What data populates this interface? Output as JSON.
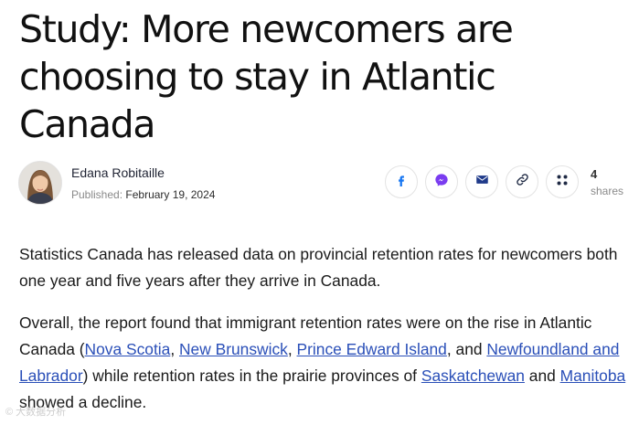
{
  "article": {
    "headline": "Study: More newcomers are choosing to stay in Atlantic Canada",
    "author": "Edana Robitaille",
    "published_label": "Published:",
    "published_date": "February 19, 2024"
  },
  "share": {
    "count": "4",
    "label": "shares",
    "buttons": [
      "facebook-icon",
      "messenger-icon",
      "email-icon",
      "link-icon",
      "more-icon"
    ],
    "colors": {
      "facebook": "#1877f2",
      "messenger": "#7a3cf0",
      "email": "#1f3a8a",
      "link": "#1f2a44"
    }
  },
  "body": {
    "p1": "Statistics Canada has released data on provincial retention rates for newcomers both one year and five years after they arrive in Canada.",
    "p2": {
      "t1": "Overall, the report found that immigrant retention rates were on the rise in Atlantic Canada (",
      "link_ns": "Nova Scotia",
      "sep1": ", ",
      "link_nb": "New Brunswick",
      "sep2": ", ",
      "link_pei": "Prince Edward Island",
      "sep3": ", and ",
      "link_nl": "Newfoundland and Labrador",
      "t2": ") while retention rates in the prairie provinces of ",
      "link_sk": "Saskatchewan",
      "t3": " and ",
      "link_mb": "Manitoba",
      "t4": " showed a decline."
    },
    "link_color": "#2a4fb8"
  },
  "watermark": "© 大数据分析"
}
